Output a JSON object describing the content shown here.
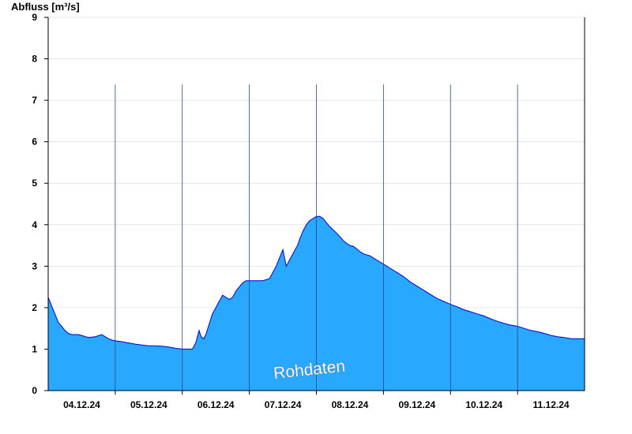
{
  "chart_data": {
    "type": "area",
    "title": "",
    "ylabel": "Abfluss [m³/s]",
    "xlabel": "",
    "ylim": [
      0,
      9
    ],
    "yticks": [
      "0",
      "1",
      "2",
      "3",
      "4",
      "5",
      "6",
      "7",
      "8",
      "9"
    ],
    "xlim": [
      3.0,
      11.0
    ],
    "day_ticks": [
      {
        "at": 3.5,
        "label": "04.12.24"
      },
      {
        "at": 4.5,
        "label": "05.12.24"
      },
      {
        "at": 5.5,
        "label": "06.12.24"
      },
      {
        "at": 6.5,
        "label": "07.12.24"
      },
      {
        "at": 7.5,
        "label": "08.12.24"
      },
      {
        "at": 8.5,
        "label": "09.12.24"
      },
      {
        "at": 9.5,
        "label": "10.12.24"
      },
      {
        "at": 10.5,
        "label": "11.12.24"
      }
    ],
    "day_boundaries": [
      4,
      5,
      6,
      7,
      8,
      9,
      10
    ],
    "grid": true,
    "watermark": "Rohdaten",
    "fill_color": "#29a8ff",
    "line_color": "#0000cc",
    "series": [
      {
        "x": [
          3.0,
          3.05,
          3.1,
          3.15,
          3.2,
          3.25,
          3.3,
          3.35,
          3.45,
          3.5,
          3.6,
          3.7,
          3.8,
          3.85,
          3.9,
          3.95,
          4.0,
          4.1,
          4.2,
          4.3,
          4.4,
          4.5,
          4.6,
          4.7,
          4.8,
          4.9,
          5.0,
          5.1,
          5.15,
          5.2,
          5.25,
          5.28,
          5.32,
          5.35,
          5.4,
          5.45,
          5.5,
          5.55,
          5.6,
          5.65,
          5.7,
          5.75,
          5.8,
          5.85,
          5.9,
          5.95,
          6.0,
          6.05,
          6.1,
          6.2,
          6.3,
          6.4,
          6.45,
          6.5,
          6.55,
          6.6,
          6.65,
          6.7,
          6.72,
          6.75,
          6.8,
          6.85,
          6.9,
          6.95,
          7.0,
          7.05,
          7.1,
          7.15,
          7.2,
          7.3,
          7.4,
          7.45,
          7.5,
          7.55,
          7.6,
          7.65,
          7.7,
          7.8,
          7.9,
          8.0,
          8.1,
          8.2,
          8.3,
          8.4,
          8.5,
          8.6,
          8.7,
          8.8,
          8.9,
          9.0,
          9.1,
          9.2,
          9.3,
          9.4,
          9.5,
          9.6,
          9.7,
          9.8,
          9.9,
          10.0,
          10.1,
          10.2,
          10.3,
          10.4,
          10.5,
          10.6,
          10.7,
          10.8,
          10.9,
          11.0
        ],
        "values": [
          2.25,
          2.05,
          1.85,
          1.65,
          1.55,
          1.45,
          1.38,
          1.35,
          1.35,
          1.33,
          1.28,
          1.3,
          1.35,
          1.3,
          1.25,
          1.22,
          1.2,
          1.18,
          1.15,
          1.12,
          1.1,
          1.08,
          1.08,
          1.07,
          1.05,
          1.02,
          1.0,
          1.0,
          1.0,
          1.15,
          1.45,
          1.3,
          1.25,
          1.35,
          1.6,
          1.85,
          2.0,
          2.15,
          2.3,
          2.25,
          2.2,
          2.25,
          2.4,
          2.5,
          2.6,
          2.65,
          2.65,
          2.65,
          2.65,
          2.65,
          2.7,
          3.0,
          3.2,
          3.4,
          3.0,
          3.15,
          3.3,
          3.45,
          3.5,
          3.65,
          3.85,
          4.0,
          4.1,
          4.15,
          4.2,
          4.2,
          4.15,
          4.05,
          3.95,
          3.8,
          3.62,
          3.55,
          3.5,
          3.48,
          3.42,
          3.35,
          3.3,
          3.25,
          3.15,
          3.05,
          2.95,
          2.85,
          2.75,
          2.62,
          2.52,
          2.42,
          2.32,
          2.22,
          2.15,
          2.08,
          2.02,
          1.95,
          1.9,
          1.85,
          1.8,
          1.73,
          1.67,
          1.62,
          1.58,
          1.55,
          1.5,
          1.45,
          1.42,
          1.38,
          1.33,
          1.3,
          1.28,
          1.25,
          1.25,
          1.25
        ]
      }
    ]
  }
}
